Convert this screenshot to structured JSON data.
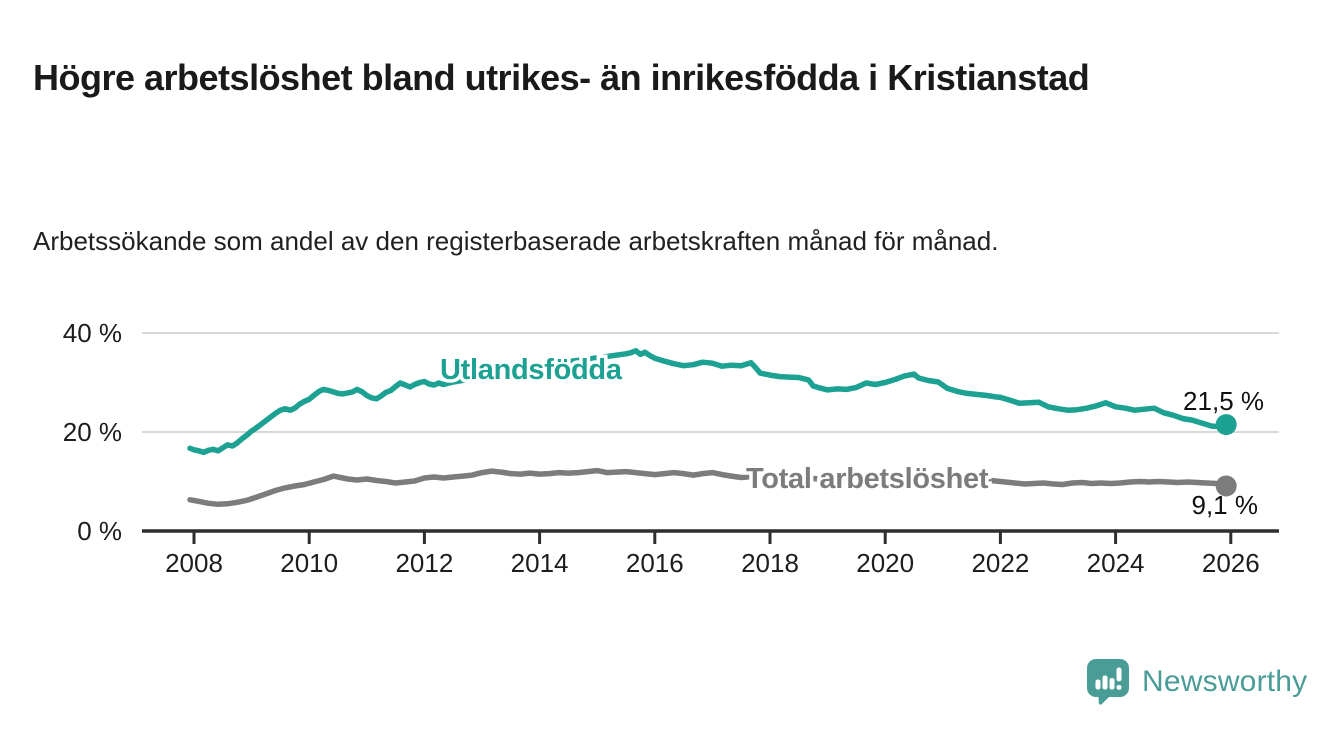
{
  "title": "Högre arbetslöshet bland utrikes- än inrikesfödda i Kristianstad",
  "subtitle": "Arbetssökande som andel av den registerbaserade arbetskraften månad för månad.",
  "branding": {
    "logo_text": "Newsworthy",
    "logo_icon": "speech-bubble-bar-chart-exclamation",
    "color": "#4a9c96"
  },
  "chart_data": {
    "type": "line",
    "title": "Högre arbetslöshet bland utrikes- än inrikesfödda i Kristianstad",
    "xlabel": "",
    "ylabel": "",
    "unit": "%",
    "grid": "horizontal",
    "legend_position": "inline-labels-on-lines",
    "ylim": [
      0,
      42
    ],
    "xlim": [
      2007.9,
      2027.1
    ],
    "y_ticks": [
      {
        "value": 0,
        "label": "0 %"
      },
      {
        "value": 20,
        "label": "20 %"
      },
      {
        "value": 40,
        "label": "40 %"
      }
    ],
    "x_ticks": [
      {
        "value": 2008,
        "label": "2008"
      },
      {
        "value": 2010,
        "label": "2010"
      },
      {
        "value": 2012,
        "label": "2012"
      },
      {
        "value": 2014,
        "label": "2014"
      },
      {
        "value": 2016,
        "label": "2016"
      },
      {
        "value": 2018,
        "label": "2018"
      },
      {
        "value": 2020,
        "label": "2020"
      },
      {
        "value": 2022,
        "label": "2022"
      },
      {
        "value": 2024,
        "label": "2024"
      },
      {
        "value": 2026,
        "label": "2026"
      }
    ],
    "series": [
      {
        "name": "Utlandsfödda",
        "color": "#1ca192",
        "end_label": "21,5 %",
        "end_value": 21.5,
        "points": [
          [
            2007.93,
            16.7
          ],
          [
            2008.0,
            16.4
          ],
          [
            2008.08,
            16.2
          ],
          [
            2008.17,
            15.9
          ],
          [
            2008.25,
            16.3
          ],
          [
            2008.33,
            16.5
          ],
          [
            2008.42,
            16.2
          ],
          [
            2008.5,
            16.8
          ],
          [
            2008.58,
            17.4
          ],
          [
            2008.67,
            17.2
          ],
          [
            2008.75,
            17.8
          ],
          [
            2008.83,
            18.6
          ],
          [
            2008.92,
            19.4
          ],
          [
            2009.0,
            20.2
          ],
          [
            2009.08,
            20.8
          ],
          [
            2009.17,
            21.6
          ],
          [
            2009.25,
            22.3
          ],
          [
            2009.33,
            23.0
          ],
          [
            2009.42,
            23.8
          ],
          [
            2009.5,
            24.4
          ],
          [
            2009.58,
            24.7
          ],
          [
            2009.67,
            24.4
          ],
          [
            2009.75,
            24.8
          ],
          [
            2009.83,
            25.6
          ],
          [
            2009.92,
            26.2
          ],
          [
            2010.0,
            26.6
          ],
          [
            2010.08,
            27.4
          ],
          [
            2010.17,
            28.2
          ],
          [
            2010.25,
            28.6
          ],
          [
            2010.33,
            28.4
          ],
          [
            2010.42,
            28.1
          ],
          [
            2010.5,
            27.8
          ],
          [
            2010.58,
            27.7
          ],
          [
            2010.67,
            27.9
          ],
          [
            2010.75,
            28.1
          ],
          [
            2010.83,
            28.6
          ],
          [
            2010.92,
            28.1
          ],
          [
            2011.0,
            27.4
          ],
          [
            2011.08,
            26.9
          ],
          [
            2011.17,
            26.7
          ],
          [
            2011.25,
            27.3
          ],
          [
            2011.33,
            28.0
          ],
          [
            2011.42,
            28.4
          ],
          [
            2011.5,
            29.2
          ],
          [
            2011.58,
            29.9
          ],
          [
            2011.67,
            29.5
          ],
          [
            2011.75,
            29.1
          ],
          [
            2011.83,
            29.6
          ],
          [
            2011.92,
            30.0
          ],
          [
            2012.0,
            30.2
          ],
          [
            2012.08,
            29.7
          ],
          [
            2012.17,
            29.5
          ],
          [
            2012.25,
            29.9
          ],
          [
            2012.33,
            29.6
          ],
          [
            2012.5,
            30.1
          ],
          [
            2012.75,
            30.6
          ],
          [
            2013.0,
            31.2
          ],
          [
            2013.25,
            31.7
          ],
          [
            2013.5,
            32.2
          ],
          [
            2013.75,
            32.8
          ],
          [
            2014.0,
            33.3
          ],
          [
            2014.25,
            33.8
          ],
          [
            2014.5,
            34.2
          ],
          [
            2014.75,
            34.6
          ],
          [
            2015.0,
            35.0
          ],
          [
            2015.25,
            35.4
          ],
          [
            2015.5,
            35.8
          ],
          [
            2015.58,
            36.0
          ],
          [
            2015.67,
            36.4
          ],
          [
            2015.75,
            35.7
          ],
          [
            2015.83,
            36.1
          ],
          [
            2015.92,
            35.4
          ],
          [
            2016.0,
            34.9
          ],
          [
            2016.17,
            34.3
          ],
          [
            2016.33,
            33.8
          ],
          [
            2016.5,
            33.4
          ],
          [
            2016.67,
            33.6
          ],
          [
            2016.83,
            34.1
          ],
          [
            2017.0,
            33.9
          ],
          [
            2017.17,
            33.3
          ],
          [
            2017.33,
            33.5
          ],
          [
            2017.5,
            33.4
          ],
          [
            2017.67,
            34.0
          ],
          [
            2017.75,
            33.0
          ],
          [
            2017.83,
            31.9
          ],
          [
            2018.0,
            31.5
          ],
          [
            2018.17,
            31.2
          ],
          [
            2018.33,
            31.1
          ],
          [
            2018.5,
            31.0
          ],
          [
            2018.67,
            30.5
          ],
          [
            2018.75,
            29.3
          ],
          [
            2018.83,
            29.0
          ],
          [
            2019.0,
            28.5
          ],
          [
            2019.17,
            28.7
          ],
          [
            2019.33,
            28.6
          ],
          [
            2019.5,
            29.0
          ],
          [
            2019.67,
            29.9
          ],
          [
            2019.83,
            29.6
          ],
          [
            2020.0,
            30.0
          ],
          [
            2020.17,
            30.6
          ],
          [
            2020.33,
            31.3
          ],
          [
            2020.5,
            31.7
          ],
          [
            2020.58,
            30.9
          ],
          [
            2020.75,
            30.4
          ],
          [
            2020.92,
            30.1
          ],
          [
            2021.08,
            28.8
          ],
          [
            2021.25,
            28.2
          ],
          [
            2021.42,
            27.8
          ],
          [
            2021.58,
            27.6
          ],
          [
            2021.75,
            27.4
          ],
          [
            2021.92,
            27.1
          ],
          [
            2022.0,
            27.0
          ],
          [
            2022.17,
            26.4
          ],
          [
            2022.33,
            25.8
          ],
          [
            2022.5,
            25.9
          ],
          [
            2022.67,
            26.0
          ],
          [
            2022.83,
            25.1
          ],
          [
            2023.0,
            24.7
          ],
          [
            2023.17,
            24.4
          ],
          [
            2023.33,
            24.5
          ],
          [
            2023.5,
            24.8
          ],
          [
            2023.67,
            25.3
          ],
          [
            2023.83,
            25.9
          ],
          [
            2024.0,
            25.1
          ],
          [
            2024.17,
            24.8
          ],
          [
            2024.33,
            24.4
          ],
          [
            2024.5,
            24.6
          ],
          [
            2024.67,
            24.8
          ],
          [
            2024.83,
            23.9
          ],
          [
            2025.0,
            23.4
          ],
          [
            2025.17,
            22.7
          ],
          [
            2025.33,
            22.4
          ],
          [
            2025.5,
            21.8
          ],
          [
            2025.67,
            21.2
          ],
          [
            2025.83,
            21.1
          ],
          [
            2025.92,
            21.5
          ]
        ]
      },
      {
        "name": "Total arbetslöshet",
        "color": "#7c7c7c",
        "end_label": "9,1 %",
        "end_value": 9.1,
        "points": [
          [
            2007.93,
            6.3
          ],
          [
            2008.08,
            6.0
          ],
          [
            2008.25,
            5.6
          ],
          [
            2008.42,
            5.4
          ],
          [
            2008.58,
            5.5
          ],
          [
            2008.75,
            5.8
          ],
          [
            2008.92,
            6.2
          ],
          [
            2009.08,
            6.8
          ],
          [
            2009.25,
            7.5
          ],
          [
            2009.42,
            8.2
          ],
          [
            2009.58,
            8.7
          ],
          [
            2009.75,
            9.1
          ],
          [
            2009.92,
            9.4
          ],
          [
            2010.08,
            9.9
          ],
          [
            2010.25,
            10.4
          ],
          [
            2010.42,
            11.1
          ],
          [
            2010.5,
            10.9
          ],
          [
            2010.67,
            10.5
          ],
          [
            2010.83,
            10.3
          ],
          [
            2011.0,
            10.5
          ],
          [
            2011.17,
            10.2
          ],
          [
            2011.33,
            10.0
          ],
          [
            2011.5,
            9.7
          ],
          [
            2011.67,
            9.9
          ],
          [
            2011.83,
            10.1
          ],
          [
            2012.0,
            10.7
          ],
          [
            2012.17,
            10.9
          ],
          [
            2012.33,
            10.7
          ],
          [
            2012.5,
            10.9
          ],
          [
            2012.67,
            11.1
          ],
          [
            2012.83,
            11.3
          ],
          [
            2013.0,
            11.8
          ],
          [
            2013.17,
            12.1
          ],
          [
            2013.33,
            11.9
          ],
          [
            2013.5,
            11.6
          ],
          [
            2013.67,
            11.5
          ],
          [
            2013.83,
            11.7
          ],
          [
            2014.0,
            11.5
          ],
          [
            2014.17,
            11.6
          ],
          [
            2014.33,
            11.8
          ],
          [
            2014.5,
            11.7
          ],
          [
            2014.67,
            11.8
          ],
          [
            2014.83,
            12.0
          ],
          [
            2015.0,
            12.2
          ],
          [
            2015.17,
            11.8
          ],
          [
            2015.33,
            11.9
          ],
          [
            2015.5,
            12.0
          ],
          [
            2015.67,
            11.8
          ],
          [
            2015.83,
            11.6
          ],
          [
            2016.0,
            11.4
          ],
          [
            2016.17,
            11.6
          ],
          [
            2016.33,
            11.8
          ],
          [
            2016.5,
            11.6
          ],
          [
            2016.67,
            11.3
          ],
          [
            2016.83,
            11.6
          ],
          [
            2017.0,
            11.8
          ],
          [
            2017.17,
            11.4
          ],
          [
            2017.33,
            11.1
          ],
          [
            2017.5,
            10.8
          ],
          [
            2017.67,
            11.0
          ],
          [
            2017.83,
            11.2
          ],
          [
            2018.0,
            11.0
          ],
          [
            2018.25,
            10.7
          ],
          [
            2018.5,
            10.9
          ],
          [
            2018.75,
            10.6
          ],
          [
            2019.0,
            10.3
          ],
          [
            2019.25,
            10.4
          ],
          [
            2019.5,
            10.2
          ],
          [
            2019.75,
            10.4
          ],
          [
            2020.0,
            10.6
          ],
          [
            2020.25,
            11.0
          ],
          [
            2020.5,
            11.3
          ],
          [
            2020.75,
            11.1
          ],
          [
            2021.0,
            11.2
          ],
          [
            2021.25,
            10.9
          ],
          [
            2021.5,
            10.6
          ],
          [
            2021.75,
            10.3
          ],
          [
            2022.0,
            10.0
          ],
          [
            2022.25,
            9.7
          ],
          [
            2022.42,
            9.5
          ],
          [
            2022.58,
            9.6
          ],
          [
            2022.75,
            9.7
          ],
          [
            2022.92,
            9.5
          ],
          [
            2023.08,
            9.4
          ],
          [
            2023.25,
            9.7
          ],
          [
            2023.42,
            9.8
          ],
          [
            2023.58,
            9.6
          ],
          [
            2023.75,
            9.7
          ],
          [
            2023.92,
            9.6
          ],
          [
            2024.08,
            9.7
          ],
          [
            2024.25,
            9.9
          ],
          [
            2024.42,
            10.0
          ],
          [
            2024.58,
            9.9
          ],
          [
            2024.75,
            10.0
          ],
          [
            2024.92,
            9.9
          ],
          [
            2025.08,
            9.8
          ],
          [
            2025.25,
            9.9
          ],
          [
            2025.42,
            9.8
          ],
          [
            2025.58,
            9.7
          ],
          [
            2025.75,
            9.6
          ],
          [
            2025.92,
            9.1
          ]
        ]
      }
    ]
  }
}
